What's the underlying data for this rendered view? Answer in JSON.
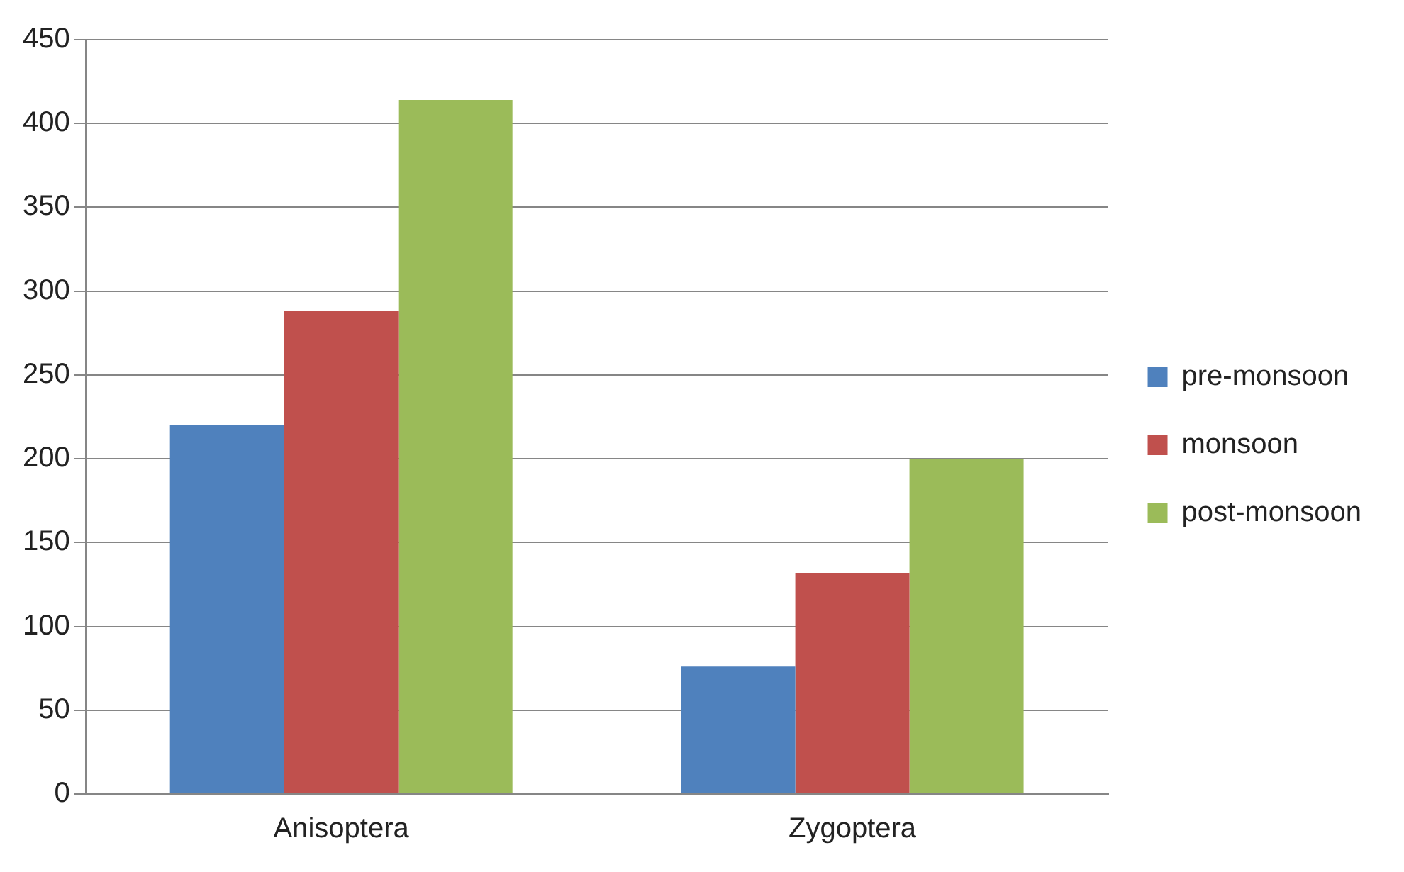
{
  "chart_data": {
    "type": "bar",
    "categories": [
      "Anisoptera",
      "Zygoptera"
    ],
    "series": [
      {
        "name": "pre-monsoon",
        "color": "#4f81bd",
        "values": [
          220,
          76
        ]
      },
      {
        "name": "monsoon",
        "color": "#c0504d",
        "values": [
          288,
          132
        ]
      },
      {
        "name": "post-monsoon",
        "color": "#9bbb59",
        "values": [
          414,
          200
        ]
      }
    ],
    "ylim": [
      0,
      450
    ],
    "yticks": [
      0,
      50,
      100,
      150,
      200,
      250,
      300,
      350,
      400,
      450
    ],
    "grid": "y",
    "legend": "right"
  }
}
